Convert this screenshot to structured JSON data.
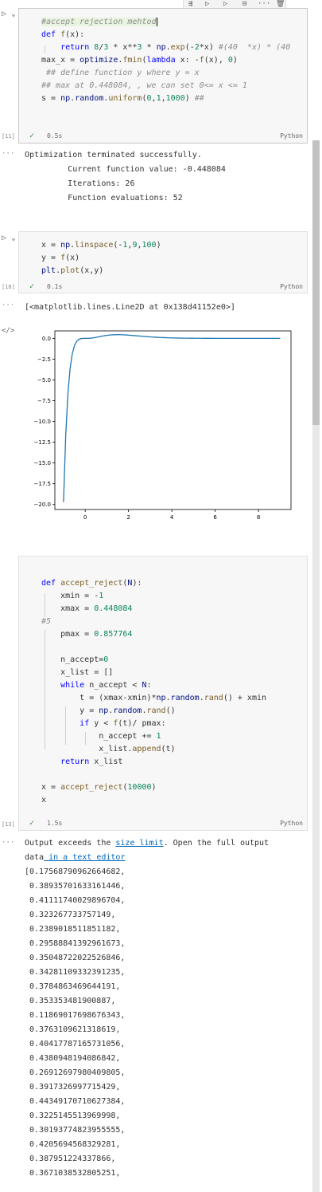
{
  "toolbar": {
    "icons": [
      "run-by-line-icon",
      "run-above-icon",
      "run-below-icon",
      "split-cell-icon",
      "more-icon",
      "delete-icon"
    ],
    "more": "···"
  },
  "cell1": {
    "exec_count": "[11]",
    "status_time": "0.5s",
    "language": "Python",
    "output": [
      "Optimization terminated successfully.",
      "         Current function value: -0.448084",
      "         Iterations: 26",
      "         Function evaluations: 52"
    ]
  },
  "cell2": {
    "exec_count": "[18]",
    "status_time": "0.1s",
    "language": "Python",
    "output_text": "[<matplotlib.lines.Line2D at 0x138d41152e0>]"
  },
  "chart_data": {
    "type": "line",
    "title": "",
    "xlabel": "",
    "ylabel": "",
    "xlim": [
      -1.4,
      9.5
    ],
    "ylim": [
      -20.6,
      0.9
    ],
    "xticks": [
      0,
      2,
      4,
      6,
      8
    ],
    "yticks": [
      0.0,
      -2.5,
      -5.0,
      -7.5,
      -10.0,
      -12.5,
      -15.0,
      -17.5,
      -20.0
    ],
    "ytick_labels": [
      "0.0",
      "−2.5",
      "−5.0",
      "−7.5",
      "−10.0",
      "−12.5",
      "−15.0",
      "−17.5",
      "−20.0"
    ],
    "line_color": "#1f77b4",
    "function": "8/3 * x**3 * exp(-2x)",
    "x_range": [
      -1,
      9
    ],
    "points": 100
  },
  "cell3": {
    "exec_count": "[13]",
    "status_time": "1.5s",
    "language": "Python"
  },
  "output3": {
    "notice_prefix": "Output exceeds the ",
    "notice_link": "size limit",
    "notice_suffix": ". Open the full output",
    "notice_line2_prefix": "data",
    "notice_link2": " in a text editor",
    "values": [
      "[0.17568790962664682,",
      " 0.38935701633161446,",
      " 0.41111740029896704,",
      " 0.323267733757149,",
      " 0.2389018511851182,",
      " 0.29588841392961673,",
      " 0.35048722022526846,",
      " 0.34281109332391235,",
      " 0.3784863469644191,",
      " 0.353353481900887,",
      " 0.11869017698676343,",
      " 0.3763109621318619,",
      " 0.40417787165731056,",
      " 0.4380948194086842,",
      " 0.26912697980409805,",
      " 0.3917326997715429,",
      " 0.44349170710627384,",
      " 0.3225145513969998,",
      " 0.30193774823955555,",
      " 0.4205694568329281,",
      " 0.387951224337866,",
      " 0.3671038532805251,"
    ]
  }
}
